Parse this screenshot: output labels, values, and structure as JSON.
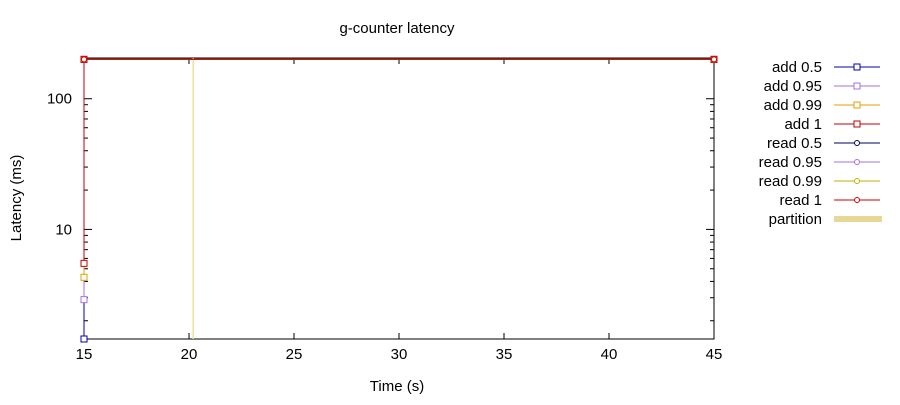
{
  "chart_data": {
    "type": "line",
    "title": "g-counter latency",
    "xlabel": "Time (s)",
    "ylabel": "Latency (ms)",
    "xlim": [
      15,
      45
    ],
    "ylim": [
      1.45,
      205
    ],
    "yscale": "log",
    "xticks": [
      "15",
      "20",
      "25",
      "30",
      "35",
      "40",
      "45"
    ],
    "yticks": [
      "10",
      "100"
    ],
    "grid": false,
    "legend_position": "right",
    "partition_marker": {
      "name": "partition",
      "x": 20.2,
      "color": "#f0e0a0"
    },
    "series": [
      {
        "name": "add 0.5",
        "color": "#0000b0",
        "marker": "square",
        "x": [
          15,
          15,
          45
        ],
        "y": [
          1.45,
          200,
          200
        ]
      },
      {
        "name": "add 0.95",
        "color": "#a070e0",
        "marker": "square",
        "x": [
          15,
          15,
          45
        ],
        "y": [
          2.9,
          200,
          200
        ]
      },
      {
        "name": "add 0.99",
        "color": "#e0a000",
        "marker": "square",
        "x": [
          15,
          15,
          45
        ],
        "y": [
          4.3,
          200,
          200
        ]
      },
      {
        "name": "add 1",
        "color": "#c00000",
        "marker": "square",
        "x": [
          15,
          15,
          45
        ],
        "y": [
          5.5,
          200,
          200
        ]
      },
      {
        "name": "read 0.5",
        "color": "#000060",
        "marker": "circle",
        "x": [
          15,
          45
        ],
        "y": [
          200,
          200
        ]
      },
      {
        "name": "read 0.95",
        "color": "#a070e0",
        "marker": "circle",
        "x": [
          15,
          45
        ],
        "y": [
          200,
          200
        ]
      },
      {
        "name": "read 0.99",
        "color": "#c0b000",
        "marker": "circle",
        "x": [
          15,
          45
        ],
        "y": [
          200,
          200
        ]
      },
      {
        "name": "read 1",
        "color": "#d00000",
        "marker": "circle",
        "x": [
          15,
          45
        ],
        "y": [
          200,
          200
        ]
      }
    ]
  }
}
